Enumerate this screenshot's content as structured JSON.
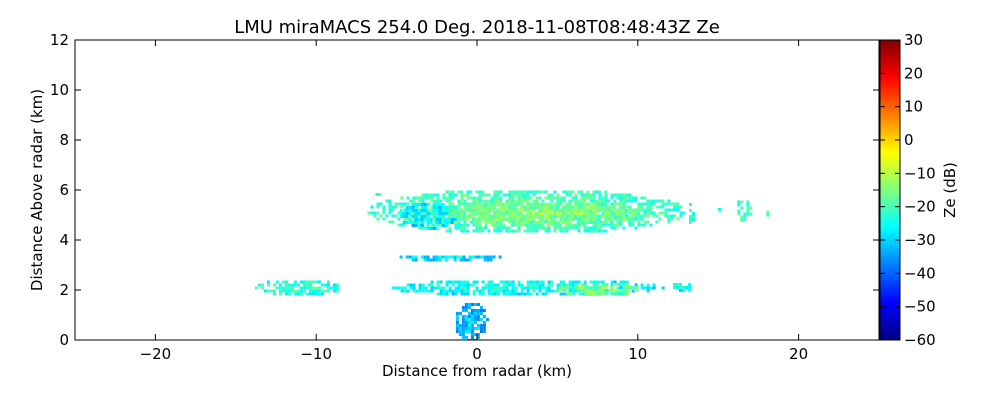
{
  "chart_data": {
    "type": "heatmap",
    "title": "LMU miraMACS 254.0 Deg. 2018-11-08T08:48:43Z  Ze",
    "xlabel": "Distance from radar (km)",
    "ylabel": "Distance Above radar  (km)",
    "xlim": [
      -25,
      25
    ],
    "ylim": [
      0,
      12
    ],
    "xticks": [
      -20,
      -10,
      0,
      10,
      20
    ],
    "xtick_labels": [
      "−20",
      "−10",
      "0",
      "10",
      "20"
    ],
    "yticks": [
      0,
      2,
      4,
      6,
      8,
      10,
      12
    ],
    "ytick_labels": [
      "0",
      "2",
      "4",
      "6",
      "8",
      "10",
      "12"
    ],
    "colorbar": {
      "label": "Ze (dB)",
      "range": [
        -60,
        30
      ],
      "ticks": [
        30,
        20,
        10,
        0,
        -10,
        -20,
        -30,
        -40,
        -50,
        -60
      ],
      "tick_labels": [
        "30",
        "20",
        "10",
        "0",
        "−10",
        "−20",
        "−30",
        "−40",
        "−50",
        "−60"
      ],
      "colormap": "jet",
      "colors": [
        "#00007f",
        "#0000ff",
        "#007fff",
        "#00ffff",
        "#7fff7f",
        "#ffff00",
        "#ff7f00",
        "#ff0000",
        "#7f0000"
      ]
    },
    "echo_regions": [
      {
        "x": [
          -7.0,
          13.0
        ],
        "y": [
          4.3,
          6.1
        ],
        "ze_mean": -22
      },
      {
        "x": [
          -5.0,
          -1.0
        ],
        "y": [
          4.5,
          5.6
        ],
        "ze_mean": -30
      },
      {
        "x": [
          -2.0,
          10.0
        ],
        "y": [
          4.6,
          5.6
        ],
        "ze_mean": -18
      },
      {
        "x": [
          -5.0,
          1.5
        ],
        "y": [
          3.2,
          3.5
        ],
        "ze_mean": -32
      },
      {
        "x": [
          -5.5,
          11.5
        ],
        "y": [
          1.8,
          2.5
        ],
        "ze_mean": -28
      },
      {
        "x": [
          5.0,
          10.0
        ],
        "y": [
          1.8,
          2.4
        ],
        "ze_mean": -19
      },
      {
        "x": [
          -14.0,
          -8.5
        ],
        "y": [
          1.8,
          2.5
        ],
        "ze_mean": -25
      },
      {
        "x": [
          12.0,
          13.5
        ],
        "y": [
          2.0,
          2.4
        ],
        "ze_mean": -28
      },
      {
        "x": [
          13.0,
          13.5
        ],
        "y": [
          4.6,
          5.6
        ],
        "ze_mean": -25
      },
      {
        "x": [
          16.0,
          17.0
        ],
        "y": [
          4.8,
          5.7
        ],
        "ze_mean": -23
      },
      {
        "x": [
          17.8,
          18.1
        ],
        "y": [
          4.8,
          5.3
        ],
        "ze_mean": -22
      },
      {
        "x": [
          14.8,
          15.0
        ],
        "y": [
          5.0,
          5.4
        ],
        "ze_mean": -25
      },
      {
        "x": [
          -6.5,
          -6.0
        ],
        "y": [
          5.8,
          6.0
        ],
        "ze_mean": -25
      },
      {
        "x": [
          -1.5,
          0.6
        ],
        "y": [
          0.0,
          1.6
        ],
        "ze_mean": -35
      }
    ]
  }
}
